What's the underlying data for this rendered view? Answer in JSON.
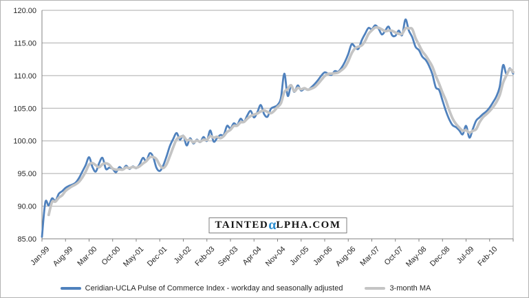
{
  "chart_data": {
    "type": "line",
    "title": "",
    "frequency": "monthly",
    "x_start": "Jan-99",
    "x_end": "Sep-10",
    "xtick_labels": [
      "Jan-99",
      "Aug-99",
      "Mar-00",
      "Oct-00",
      "May-01",
      "Dec-01",
      "Jul-02",
      "Feb-03",
      "Sep-03",
      "Apr-04",
      "Nov-04",
      "Jun-05",
      "Jan-06",
      "Aug-06",
      "Mar-07",
      "Oct-07",
      "May-08",
      "Dec-08",
      "Jul-09",
      "Feb-10"
    ],
    "xtick_interval_months": 7,
    "ylim": [
      85,
      120
    ],
    "ytick_step": 5,
    "ytick_decimals": 2,
    "grid": "horizontal",
    "legend_position": "bottom",
    "series": [
      {
        "name": "Ceridian-UCLA Pulse of Commerce Index - workday and seasonally adjusted",
        "color": "#4F81BD",
        "values": [
          85.3,
          90.6,
          90.1,
          91.2,
          90.8,
          91.9,
          92.3,
          92.8,
          93.1,
          93.3,
          93.6,
          94.3,
          95.3,
          96.3,
          97.5,
          96.0,
          95.3,
          96.6,
          97.4,
          95.7,
          95.9,
          95.7,
          95.2,
          96.0,
          95.6,
          96.2,
          95.7,
          96.1,
          95.8,
          96.4,
          97.4,
          96.9,
          98.1,
          97.6,
          95.9,
          95.4,
          96.2,
          97.6,
          99.2,
          100.3,
          101.2,
          100.2,
          100.8,
          99.3,
          100.4,
          99.6,
          100.2,
          99.8,
          100.6,
          100.0,
          101.6,
          99.9,
          100.4,
          100.9,
          100.9,
          102.3,
          101.9,
          102.7,
          102.4,
          103.4,
          102.9,
          103.9,
          104.6,
          103.6,
          104.4,
          105.5,
          104.1,
          103.7,
          104.9,
          105.2,
          105.5,
          106.6,
          110.3,
          106.9,
          108.4,
          107.5,
          108.5,
          107.7,
          108.0,
          107.8,
          108.2,
          108.7,
          109.3,
          110.0,
          110.5,
          110.3,
          110.1,
          110.7,
          110.6,
          111.2,
          112.1,
          113.3,
          114.8,
          114.4,
          114.1,
          115.4,
          116.4,
          117.3,
          117.1,
          117.7,
          117.2,
          116.3,
          116.9,
          117.5,
          116.2,
          116.1,
          116.9,
          116.2,
          118.6,
          116.9,
          115.9,
          114.4,
          113.9,
          112.9,
          112.4,
          111.5,
          110.2,
          108.2,
          107.8,
          106.2,
          104.6,
          103.3,
          102.4,
          102.1,
          101.6,
          101.0,
          102.3,
          100.5,
          101.8,
          103.1,
          103.6,
          104.1,
          104.5,
          105.1,
          105.9,
          106.8,
          108.3,
          111.6,
          110.2,
          111.1,
          110.3
        ]
      },
      {
        "name": "3-month MA",
        "color": "#C4C4C4",
        "derived": "3-month trailing moving average of first series",
        "ma_window": 3
      }
    ]
  },
  "watermark": {
    "part1": "TAINTED",
    "alpha": "α",
    "part2": "LPHA.COM",
    "alpha_color": "#2E8FD0"
  },
  "colors": {
    "background": "#FFFFFF",
    "border": "#B3B3B3",
    "axis": "#808080",
    "gridline": "#ABABAB",
    "plot_right_border": "#ABABAB",
    "label_text": "#262626"
  }
}
